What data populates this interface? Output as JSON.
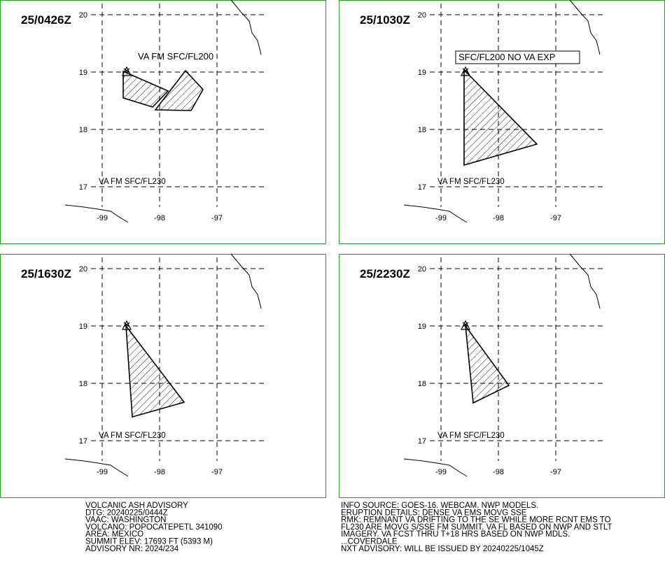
{
  "panels": [
    {
      "time": "25/0426Z",
      "labels": [
        "VA FM SFC/FL200",
        "VA FM SFC/FL230"
      ]
    },
    {
      "time": "25/1030Z",
      "labels": [
        "SFC/FL200 NO VA EXP",
        "VA FM SFC/FL230"
      ]
    },
    {
      "time": "25/1630Z",
      "labels": [
        "VA FM SFC/FL230"
      ]
    },
    {
      "time": "25/2230Z",
      "labels": [
        "VA FM SFC/FL230"
      ]
    }
  ],
  "grid": {
    "lat": [
      20,
      19,
      18,
      17
    ],
    "lon": [
      -99,
      -98,
      -97
    ]
  },
  "footer": {
    "left": [
      "VOLCANIC ASH ADVISORY",
      "DTG: 20240225/0444Z",
      "VAAC: WASHINGTON",
      "VOLCANO: POPOCATEPETL 341090",
      "AREA: MEXICO",
      "SUMMIT ELEV: 17693 FT (5393 M)",
      "ADVISORY NR: 2024/234"
    ],
    "right": [
      "INFO SOURCE: GOES-16. WEBCAM. NWP MODELS.",
      "ERUPTION DETAILS: DENSE VA EMS MOVG SSE",
      "RMK: REMNANT VA DRIFTING TO THE SE WHILE MORE RCNT EMS TO",
      "FL230 ARE MOVG S/SSE FM SUMMIT. VA FL BASED ON NWP AND STLT",
      "IMAGERY. VA FCST THRU T+18 HRS BASED ON NWP MDLS.",
      "...COVERDALE",
      "NXT ADVISORY: WILL BE ISSUED BY 20240225/1045Z"
    ]
  }
}
